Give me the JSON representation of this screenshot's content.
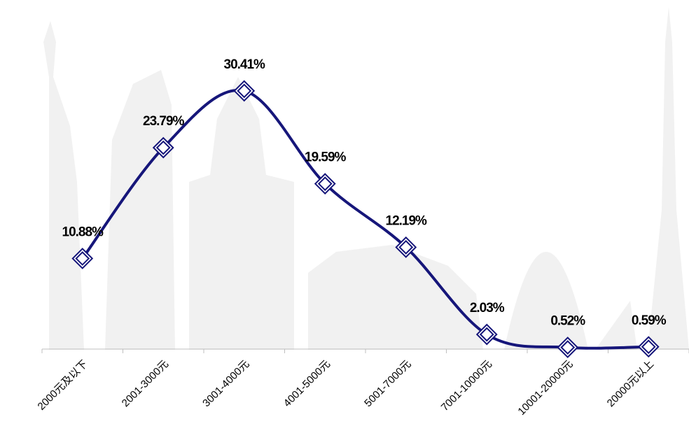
{
  "chart_data": {
    "type": "line",
    "categories": [
      "2000元及以下",
      "2001-3000元",
      "3001-4000元",
      "4001-5000元",
      "5001-7000元",
      "7001-10000元",
      "10001-20000元",
      "20000元以上"
    ],
    "values": [
      10.88,
      23.79,
      30.41,
      19.59,
      12.19,
      2.03,
      0.52,
      0.59
    ],
    "value_labels": [
      "10.88%",
      "23.79%",
      "30.41%",
      "19.59%",
      "12.19%",
      "2.03%",
      "0.52%",
      "0.59%"
    ],
    "color": "#16167a",
    "ylim": [
      0,
      41
    ]
  }
}
